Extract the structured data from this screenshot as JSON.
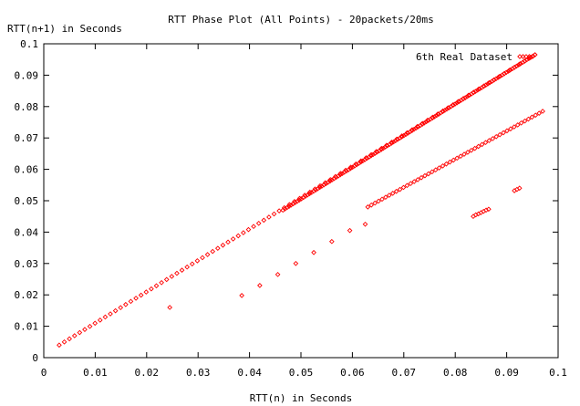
{
  "chart_data": {
    "type": "scatter",
    "title": "RTT Phase Plot (All Points) - 20packets/20ms",
    "xlabel": "RTT(n) in Seconds",
    "ylabel": "RTT(n+1) in Seconds",
    "xlim": [
      0,
      0.1
    ],
    "ylim": [
      0,
      0.1
    ],
    "xticks": [
      "0",
      "0.01",
      "0.02",
      "0.03",
      "0.04",
      "0.05",
      "0.06",
      "0.07",
      "0.08",
      "0.09",
      "0.1"
    ],
    "yticks": [
      "0",
      "0.01",
      "0.02",
      "0.03",
      "0.04",
      "0.05",
      "0.06",
      "0.07",
      "0.08",
      "0.09",
      "0.1"
    ],
    "grid": false,
    "legend_position": "top-right",
    "point_color": "#ff0000",
    "marker": "diamond",
    "series": [
      {
        "name": "6th Real Dataset",
        "segments": [
          {
            "x_start": 0.003,
            "y_start": 0.004,
            "x_end": 0.0955,
            "y_end": 0.0965,
            "step": 0.001
          },
          {
            "x_start": 0.0465,
            "y_start": 0.047,
            "x_end": 0.0955,
            "y_end": 0.0965,
            "step": 0.0004
          },
          {
            "x_start": 0.063,
            "y_start": 0.048,
            "x_end": 0.097,
            "y_end": 0.0785,
            "step": 0.0007
          }
        ],
        "points": [
          [
            0.0245,
            0.016
          ],
          [
            0.0385,
            0.0198
          ],
          [
            0.042,
            0.023
          ],
          [
            0.0455,
            0.0265
          ],
          [
            0.049,
            0.03
          ],
          [
            0.0525,
            0.0335
          ],
          [
            0.056,
            0.037
          ],
          [
            0.0595,
            0.0405
          ],
          [
            0.0625,
            0.0425
          ],
          [
            0.0835,
            0.045
          ],
          [
            0.084,
            0.0455
          ],
          [
            0.0845,
            0.0458
          ],
          [
            0.085,
            0.0462
          ],
          [
            0.0855,
            0.0466
          ],
          [
            0.086,
            0.047
          ],
          [
            0.0865,
            0.0473
          ],
          [
            0.0915,
            0.0532
          ],
          [
            0.092,
            0.0536
          ],
          [
            0.0925,
            0.054
          ]
        ]
      }
    ]
  }
}
